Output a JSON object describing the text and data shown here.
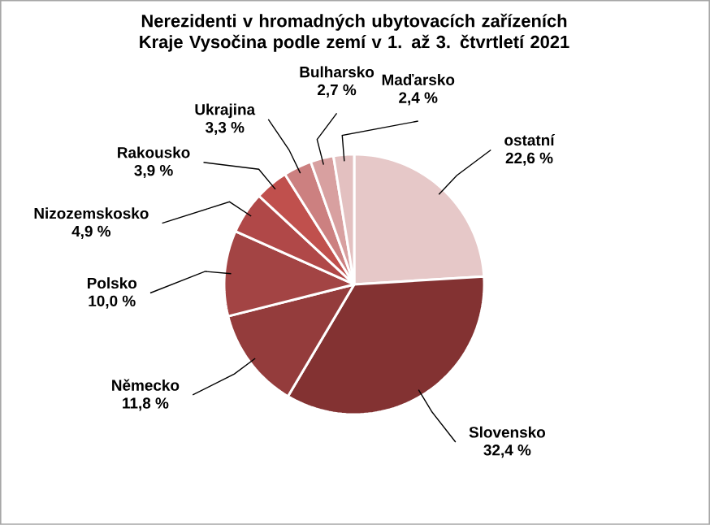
{
  "chart_data": {
    "type": "pie",
    "title": "Nerezidenti v hromadných ubytovacích zařízeních Kraje Vysočina podle zemí v 1.  až 3. čtvrtletí 2021",
    "categories": [
      "ostatní",
      "Slovensko",
      "Německo",
      "Polsko",
      "Nizozemskosko",
      "Rakousko",
      "Ukrajina",
      "Bulharsko",
      "Maďarsko"
    ],
    "values": [
      22.6,
      32.4,
      11.8,
      10.0,
      4.9,
      3.9,
      3.3,
      2.7,
      2.4
    ],
    "value_labels": [
      "22,6 %",
      "32,4 %",
      "11,8 %",
      "10,0 %",
      "4,9 %",
      "3,9 %",
      "3,3 %",
      "2,7 %",
      "2,4 %"
    ],
    "colors": [
      "#e6c8c8",
      "#833232",
      "#943c3c",
      "#a34444",
      "#b04848",
      "#c0504d",
      "#cc8080",
      "#d8a0a0",
      "#e3c0c0"
    ]
  }
}
